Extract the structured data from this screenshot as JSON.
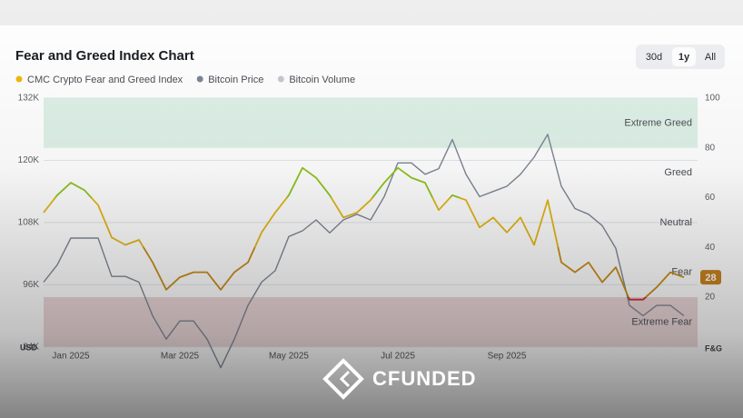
{
  "chart_data": {
    "type": "line",
    "title": "Fear and Greed Index Chart",
    "range_buttons": [
      "30d",
      "1y",
      "All"
    ],
    "selected_range": 1,
    "categories": [
      null,
      null,
      "Jan 2025",
      null,
      null,
      null,
      null,
      null,
      null,
      null,
      "Mar 2025",
      null,
      null,
      null,
      null,
      null,
      null,
      null,
      "May 2025",
      null,
      null,
      null,
      null,
      null,
      null,
      null,
      "Jul 2025",
      null,
      null,
      null,
      null,
      null,
      null,
      null,
      "Sep 2025",
      null,
      null,
      null,
      null,
      null,
      null,
      null,
      null,
      null,
      null,
      null,
      null,
      null
    ],
    "series": [
      {
        "name": "CMC Crypto Fear and Greed Index",
        "color": "#f0b90b",
        "axis": "y2",
        "values": [
          54,
          61,
          66,
          63,
          57,
          44,
          41,
          43,
          34,
          23,
          28,
          30,
          30,
          23,
          30,
          34,
          46,
          54,
          61,
          72,
          68,
          61,
          52,
          54,
          59,
          66,
          72,
          68,
          66,
          55,
          61,
          59,
          48,
          52,
          46,
          52,
          41,
          59,
          34,
          30,
          34,
          26,
          32,
          19,
          19,
          24,
          30,
          28
        ]
      },
      {
        "name": "Bitcoin Price",
        "color": "#7c8694",
        "values": [
          96500,
          99800,
          105000,
          105000,
          105000,
          97600,
          97600,
          96500,
          90000,
          85500,
          89000,
          89000,
          85500,
          80000,
          85500,
          92000,
          96500,
          98700,
          105300,
          106400,
          108500,
          106000,
          108500,
          109600,
          108500,
          113000,
          119500,
          119500,
          117300,
          118400,
          124000,
          117300,
          113000,
          114000,
          115000,
          117300,
          120600,
          125000,
          115000,
          110700,
          109600,
          107400,
          103000,
          92000,
          90000,
          92000,
          92000,
          90000
        ]
      },
      {
        "name": "Bitcoin Volume",
        "color": "#c6cad2"
      }
    ],
    "ylim": [
      84000,
      132000
    ],
    "yticks": [
      {
        "value": 84000,
        "label": "84K"
      },
      {
        "value": 96000,
        "label": "96K"
      },
      {
        "value": 108000,
        "label": "108K"
      },
      {
        "value": 120000,
        "label": "120K"
      },
      {
        "value": 132000,
        "label": "132K"
      }
    ],
    "y_label": "USD",
    "y2lim": [
      0,
      100
    ],
    "y2ticks": [
      20,
      40,
      60,
      80,
      100
    ],
    "y2_label": "F&G",
    "zones": [
      {
        "name": "Extreme Fear",
        "from": 0,
        "to": 20,
        "color": "#d2272e",
        "band": "#e6c9cb"
      },
      {
        "name": "Fear",
        "from": 20,
        "to": 40,
        "color": "#c98a14"
      },
      {
        "name": "Neutral",
        "from": 40,
        "to": 60,
        "color": "#e3b612"
      },
      {
        "name": "Greed",
        "from": 60,
        "to": 80,
        "color": "#8ec31c"
      },
      {
        "name": "Extreme Greed",
        "from": 80,
        "to": 100,
        "color": "#6fb42a",
        "band": "#d3ecdf"
      }
    ],
    "current": 28,
    "current_color": "#c8801a",
    "grid": true
  },
  "watermark": "CFUNDED"
}
